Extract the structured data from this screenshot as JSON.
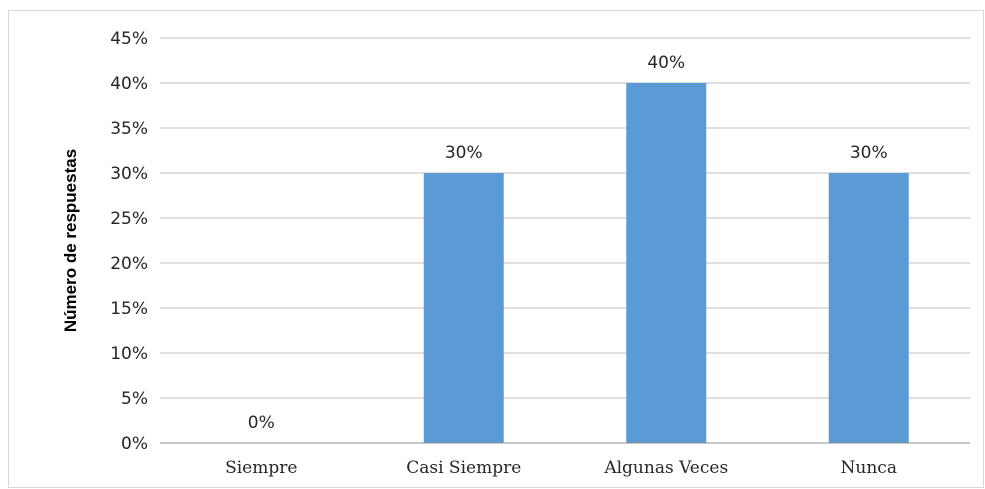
{
  "chart_data": {
    "type": "bar",
    "title": "",
    "xlabel": "",
    "ylabel": "Número de respuestas",
    "categories": [
      "Siempre",
      "Casi Siempre",
      "Algunas Veces",
      "Nunca"
    ],
    "values": [
      0,
      30,
      40,
      30
    ],
    "data_labels": [
      "0%",
      "30%",
      "40%",
      "30%"
    ],
    "y_ticks": [
      "0%",
      "5%",
      "10%",
      "15%",
      "20%",
      "25%",
      "30%",
      "35%",
      "40%",
      "45%"
    ],
    "ylim": [
      0,
      45
    ],
    "y_tick_step": 5,
    "grid": true,
    "legend": "none",
    "bar_color": "#5b9bd5"
  }
}
